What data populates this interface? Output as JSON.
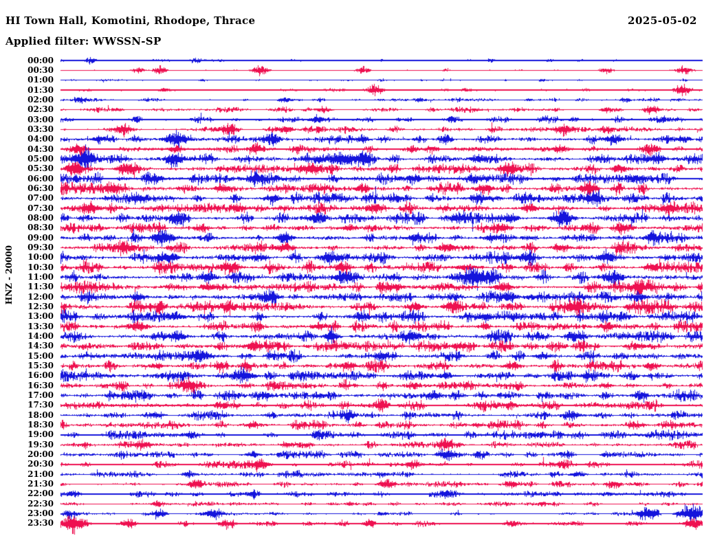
{
  "header": {
    "station_title": "HI Town Hall, Komotini, Rhodope, Thrace",
    "date": "2025-05-02",
    "filter_label": "Applied filter: WWSSN-SP"
  },
  "axis": {
    "channel_label": "HNZ - 20000"
  },
  "colors": {
    "trace_blue": "#1414dc",
    "trace_red": "#ee1050",
    "text": "#000000",
    "background": "#ffffff"
  },
  "chart_data": {
    "type": "seismogram-helicorder",
    "station": "HI Town Hall, Komotini, Rhodope, Thrace",
    "channel": "HNZ",
    "amplitude_scale": 20000,
    "date": "2025-05-02",
    "filter": "WWSSN-SP",
    "minutes_per_row": 30,
    "row_order": "top-to-bottom, colors alternate blue/red starting blue at 00:00",
    "rows": [
      {
        "time": "00:00",
        "color": "blue",
        "amp": 0.7,
        "bursts": [
          [
            0.045,
            3.5
          ],
          [
            0.21,
            2.5
          ],
          [
            0.5,
            1.5
          ],
          [
            0.67,
            2
          ],
          [
            0.76,
            2
          ]
        ]
      },
      {
        "time": "00:30",
        "color": "red",
        "amp": 0.4,
        "bursts": [
          [
            0.12,
            4
          ],
          [
            0.155,
            5
          ],
          [
            0.31,
            6
          ],
          [
            0.47,
            4
          ],
          [
            0.6,
            2
          ],
          [
            0.85,
            4
          ],
          [
            0.97,
            5
          ]
        ]
      },
      {
        "time": "01:00",
        "color": "blue",
        "amp": 0.6,
        "bursts": [
          [
            0.22,
            1.5
          ],
          [
            0.5,
            1.5
          ],
          [
            0.75,
            2
          ],
          [
            0.97,
            1.5
          ]
        ]
      },
      {
        "time": "01:30",
        "color": "red",
        "amp": 0.9,
        "bursts": [
          [
            0.16,
            2
          ],
          [
            0.49,
            6
          ],
          [
            0.63,
            2.5
          ],
          [
            0.82,
            2
          ],
          [
            0.97,
            6
          ]
        ]
      },
      {
        "time": "02:00",
        "color": "blue",
        "amp": 1.2,
        "bursts": [
          [
            0.03,
            3.5
          ],
          [
            0.35,
            2.5
          ],
          [
            0.56,
            2.5
          ],
          [
            0.73,
            2
          ],
          [
            0.88,
            3
          ]
        ]
      },
      {
        "time": "02:30",
        "color": "red",
        "amp": 1.7,
        "bursts": [
          [
            0.09,
            2.5
          ],
          [
            0.41,
            3.5
          ],
          [
            0.85,
            3.5
          ],
          [
            0.92,
            5
          ]
        ]
      },
      {
        "time": "03:00",
        "color": "blue",
        "amp": 2.0,
        "bursts": [
          [
            0.12,
            2.5
          ],
          [
            0.4,
            4.5
          ],
          [
            0.61,
            3
          ],
          [
            0.8,
            2.5
          ],
          [
            0.94,
            2.5
          ]
        ]
      },
      {
        "time": "03:30",
        "color": "red",
        "amp": 2.3,
        "bursts": [
          [
            0.1,
            5
          ],
          [
            0.26,
            6
          ],
          [
            0.35,
            5
          ],
          [
            0.78,
            6
          ],
          [
            0.85,
            4
          ]
        ]
      },
      {
        "time": "04:00",
        "color": "blue",
        "amp": 2.6,
        "bursts": [
          [
            0.06,
            4
          ],
          [
            0.18,
            8
          ],
          [
            0.33,
            5
          ],
          [
            0.47,
            4
          ],
          [
            0.6,
            4
          ],
          [
            0.86,
            6
          ],
          [
            0.97,
            4
          ]
        ]
      },
      {
        "time": "04:30",
        "color": "red",
        "amp": 2.7,
        "bursts": [
          [
            0.03,
            6
          ],
          [
            0.18,
            5
          ],
          [
            0.3,
            5
          ],
          [
            0.55,
            4
          ],
          [
            0.78,
            5
          ],
          [
            0.92,
            6
          ]
        ]
      },
      {
        "time": "05:00",
        "color": "blue",
        "amp": 3.2,
        "bursts": [
          [
            0.035,
            10
          ],
          [
            0.18,
            7
          ],
          [
            0.43,
            9
          ],
          [
            0.465,
            8
          ],
          [
            0.65,
            5
          ],
          [
            0.93,
            6
          ]
        ]
      },
      {
        "time": "05:30",
        "color": "red",
        "amp": 3.2,
        "bursts": [
          [
            0.02,
            6
          ],
          [
            0.1,
            6
          ],
          [
            0.39,
            7
          ],
          [
            0.7,
            5
          ],
          [
            0.87,
            5
          ]
        ]
      },
      {
        "time": "06:00",
        "color": "blue",
        "amp": 3.7,
        "bursts": [
          [
            0.15,
            5
          ],
          [
            0.3,
            5
          ],
          [
            0.55,
            6
          ],
          [
            0.64,
            5
          ],
          [
            0.9,
            5
          ]
        ]
      },
      {
        "time": "06:30",
        "color": "red",
        "amp": 3.7,
        "bursts": [
          [
            0.08,
            5
          ],
          [
            0.25,
            5
          ],
          [
            0.47,
            5
          ],
          [
            0.66,
            6
          ],
          [
            0.82,
            5
          ]
        ]
      },
      {
        "time": "07:00",
        "color": "blue",
        "amp": 3.6,
        "bursts": [
          [
            0.12,
            5
          ],
          [
            0.33,
            5
          ],
          [
            0.52,
            5
          ],
          [
            0.65,
            6
          ],
          [
            0.83,
            5
          ]
        ]
      },
      {
        "time": "07:30",
        "color": "red",
        "amp": 3.6,
        "bursts": [
          [
            0.05,
            5
          ],
          [
            0.28,
            5
          ],
          [
            0.49,
            5
          ],
          [
            0.73,
            5
          ],
          [
            0.95,
            5
          ]
        ]
      },
      {
        "time": "08:00",
        "color": "blue",
        "amp": 3.6,
        "bursts": [
          [
            0.18,
            5
          ],
          [
            0.4,
            5
          ],
          [
            0.62,
            5
          ],
          [
            0.7,
            6
          ],
          [
            0.78,
            5
          ]
        ]
      },
      {
        "time": "08:30",
        "color": "red",
        "amp": 3.4,
        "bursts": [
          [
            0.22,
            5
          ],
          [
            0.45,
            5
          ],
          [
            0.68,
            6
          ],
          [
            0.88,
            5
          ]
        ]
      },
      {
        "time": "09:00",
        "color": "blue",
        "amp": 3.8,
        "bursts": [
          [
            0.16,
            8
          ],
          [
            0.35,
            5
          ],
          [
            0.55,
            5
          ],
          [
            0.67,
            5
          ],
          [
            0.92,
            5
          ]
        ]
      },
      {
        "time": "09:30",
        "color": "red",
        "amp": 3.8,
        "bursts": [
          [
            0.1,
            5
          ],
          [
            0.35,
            6
          ],
          [
            0.6,
            5
          ],
          [
            0.78,
            5
          ]
        ]
      },
      {
        "time": "10:00",
        "color": "blue",
        "amp": 3.8,
        "bursts": [
          [
            0.17,
            5
          ],
          [
            0.31,
            5
          ],
          [
            0.42,
            6
          ],
          [
            0.72,
            5
          ],
          [
            0.85,
            5
          ]
        ]
      },
      {
        "time": "10:30",
        "color": "red",
        "amp": 4.0,
        "bursts": [
          [
            0.26,
            6
          ],
          [
            0.44,
            5
          ],
          [
            0.63,
            5
          ],
          [
            0.92,
            5
          ]
        ]
      },
      {
        "time": "11:00",
        "color": "blue",
        "amp": 4.0,
        "bursts": [
          [
            0.23,
            5
          ],
          [
            0.44,
            6
          ],
          [
            0.65,
            10
          ],
          [
            0.86,
            6
          ]
        ]
      },
      {
        "time": "11:30",
        "color": "red",
        "amp": 3.8,
        "bursts": [
          [
            0.23,
            5
          ],
          [
            0.52,
            5
          ],
          [
            0.69,
            6
          ],
          [
            0.9,
            5
          ]
        ]
      },
      {
        "time": "12:00",
        "color": "blue",
        "amp": 3.8,
        "bursts": [
          [
            0.12,
            5
          ],
          [
            0.33,
            5
          ],
          [
            0.7,
            5
          ],
          [
            0.9,
            5
          ]
        ]
      },
      {
        "time": "12:30",
        "color": "red",
        "amp": 4.0,
        "bursts": [
          [
            0.26,
            7
          ],
          [
            0.55,
            5
          ],
          [
            0.61,
            6
          ],
          [
            0.8,
            5
          ]
        ]
      },
      {
        "time": "13:00",
        "color": "blue",
        "amp": 3.8,
        "bursts": [
          [
            0.18,
            5
          ],
          [
            0.47,
            5
          ],
          [
            0.66,
            5
          ],
          [
            0.88,
            4
          ]
        ]
      },
      {
        "time": "13:30",
        "color": "red",
        "amp": 3.6,
        "bursts": [
          [
            0.12,
            6
          ],
          [
            0.4,
            4
          ],
          [
            0.66,
            4
          ],
          [
            0.85,
            5
          ]
        ]
      },
      {
        "time": "14:00",
        "color": "blue",
        "amp": 3.6,
        "bursts": [
          [
            0.18,
            7
          ],
          [
            0.42,
            4
          ],
          [
            0.55,
            5
          ],
          [
            0.8,
            4
          ]
        ]
      },
      {
        "time": "14:30",
        "color": "red",
        "amp": 3.6,
        "bursts": [
          [
            0.3,
            4
          ],
          [
            0.62,
            5
          ],
          [
            0.9,
            4
          ]
        ]
      },
      {
        "time": "15:00",
        "color": "blue",
        "amp": 3.6,
        "bursts": [
          [
            0.22,
            5
          ],
          [
            0.5,
            4
          ],
          [
            0.75,
            4
          ]
        ]
      },
      {
        "time": "15:30",
        "color": "red",
        "amp": 3.6,
        "bursts": [
          [
            0.15,
            4
          ],
          [
            0.45,
            5
          ],
          [
            0.7,
            4
          ],
          [
            0.92,
            4
          ]
        ]
      },
      {
        "time": "16:00",
        "color": "blue",
        "amp": 3.6,
        "bursts": [
          [
            0.285,
            8
          ],
          [
            0.6,
            4
          ],
          [
            0.82,
            4
          ]
        ]
      },
      {
        "time": "16:30",
        "color": "red",
        "amp": 3.4,
        "bursts": [
          [
            0.2,
            4
          ],
          [
            0.55,
            4
          ],
          [
            0.85,
            4
          ]
        ]
      },
      {
        "time": "17:00",
        "color": "blue",
        "amp": 3.4,
        "bursts": [
          [
            0.1,
            4
          ],
          [
            0.32,
            5
          ],
          [
            0.58,
            4
          ],
          [
            0.9,
            4
          ]
        ]
      },
      {
        "time": "17:30",
        "color": "red",
        "amp": 3.2,
        "bursts": [
          [
            0.25,
            4
          ],
          [
            0.5,
            4
          ],
          [
            0.7,
            4
          ]
        ]
      },
      {
        "time": "18:00",
        "color": "blue",
        "amp": 3.0,
        "bursts": [
          [
            0.15,
            4
          ],
          [
            0.45,
            4
          ],
          [
            0.8,
            4
          ]
        ]
      },
      {
        "time": "18:30",
        "color": "red",
        "amp": 2.8,
        "bursts": [
          [
            0.3,
            4
          ],
          [
            0.65,
            3.5
          ],
          [
            0.9,
            3.5
          ]
        ]
      },
      {
        "time": "19:00",
        "color": "blue",
        "amp": 2.8,
        "bursts": [
          [
            0.2,
            3.5
          ],
          [
            0.4,
            3.5
          ],
          [
            0.75,
            3.5
          ]
        ]
      },
      {
        "time": "19:30",
        "color": "red",
        "amp": 2.4,
        "bursts": [
          [
            0.13,
            5
          ],
          [
            0.35,
            3.5
          ],
          [
            0.6,
            4
          ]
        ]
      },
      {
        "time": "20:00",
        "color": "blue",
        "amp": 2.4,
        "bursts": [
          [
            0.3,
            3.5
          ],
          [
            0.6,
            6.5
          ],
          [
            0.85,
            3
          ]
        ]
      },
      {
        "time": "20:30",
        "color": "red",
        "amp": 2.2,
        "bursts": [
          [
            0.31,
            7
          ],
          [
            0.55,
            5
          ],
          [
            0.78,
            3
          ]
        ]
      },
      {
        "time": "21:00",
        "color": "blue",
        "amp": 2.2,
        "bursts": [
          [
            0.2,
            3.5
          ],
          [
            0.5,
            3
          ],
          [
            0.8,
            3
          ]
        ]
      },
      {
        "time": "21:30",
        "color": "red",
        "amp": 1.8,
        "bursts": [
          [
            0.21,
            4.5
          ],
          [
            0.51,
            5
          ],
          [
            0.7,
            3
          ],
          [
            0.86,
            5
          ]
        ]
      },
      {
        "time": "22:00",
        "color": "blue",
        "amp": 1.8,
        "bursts": [
          [
            0.02,
            4.5
          ],
          [
            0.3,
            5
          ],
          [
            0.6,
            3
          ],
          [
            0.85,
            3
          ]
        ]
      },
      {
        "time": "22:30",
        "color": "red",
        "amp": 1.4,
        "bursts": [
          [
            0.15,
            2.5
          ],
          [
            0.45,
            2.5
          ],
          [
            0.75,
            2.5
          ]
        ]
      },
      {
        "time": "23:00",
        "color": "blue",
        "amp": 1.2,
        "bursts": [
          [
            0.016,
            5
          ],
          [
            0.155,
            4
          ],
          [
            0.24,
            5
          ],
          [
            0.5,
            2.5
          ],
          [
            0.915,
            8
          ],
          [
            0.982,
            11
          ]
        ]
      },
      {
        "time": "23:30",
        "color": "red",
        "amp": 1.7,
        "bursts": [
          [
            0.02,
            10
          ],
          [
            0.107,
            5
          ],
          [
            0.26,
            6
          ],
          [
            0.48,
            4
          ],
          [
            0.7,
            4
          ],
          [
            0.985,
            6
          ]
        ]
      }
    ]
  }
}
